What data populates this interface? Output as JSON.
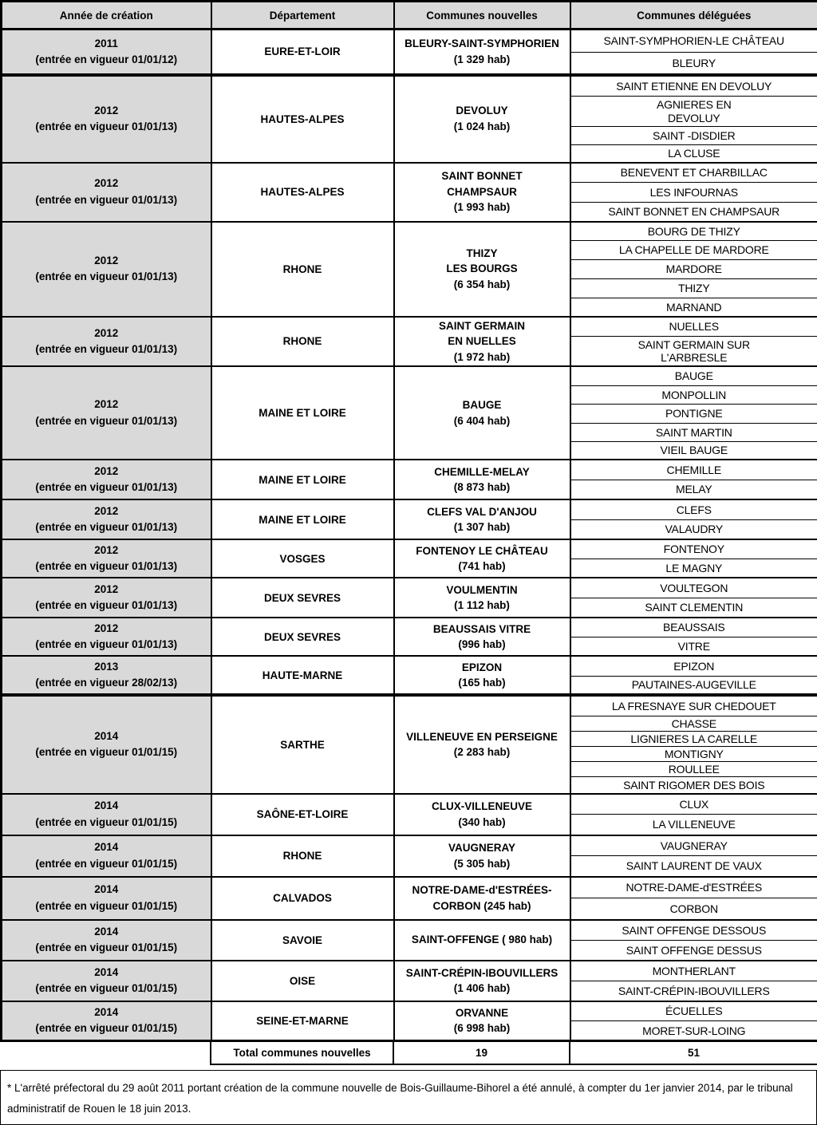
{
  "header": {
    "columns": [
      "Année de création",
      "Département",
      "Communes nouvelles",
      "Communes déléguées"
    ]
  },
  "rows": [
    {
      "year": "2011\n(entrée en vigueur 01/01/12)",
      "departement": "EURE-ET-LOIR",
      "commune_nouvelle": "BLEURY-SAINT-SYMPHORIEN\n(1 329 hab)",
      "communes_deleguees": [
        "SAINT-SYMPHORIEN-LE CHÂTEAU",
        "BLEURY"
      ],
      "group_end": true
    },
    {
      "year": "2012\n(entrée en vigueur 01/01/13)",
      "departement": "HAUTES-ALPES",
      "commune_nouvelle": "DEVOLUY\n(1 024 hab)",
      "communes_deleguees": [
        "SAINT ETIENNE EN DEVOLUY",
        "AGNIERES EN\nDEVOLUY",
        "SAINT -DISDIER",
        "LA CLUSE"
      ]
    },
    {
      "year": "2012\n(entrée en vigueur 01/01/13)",
      "departement": "HAUTES-ALPES",
      "commune_nouvelle": "SAINT BONNET\nCHAMPSAUR\n(1 993 hab)",
      "communes_deleguees": [
        "BENEVENT ET CHARBILLAC",
        "LES INFOURNAS",
        "SAINT BONNET EN CHAMPSAUR"
      ]
    },
    {
      "year": "2012\n(entrée en vigueur 01/01/13)",
      "departement": "RHONE",
      "commune_nouvelle": "THIZY\nLES BOURGS\n(6 354 hab)",
      "communes_deleguees": [
        "BOURG DE THIZY",
        "LA CHAPELLE DE MARDORE",
        "MARDORE",
        "THIZY",
        "MARNAND"
      ]
    },
    {
      "year": "2012\n(entrée en vigueur 01/01/13)",
      "departement": "RHONE",
      "commune_nouvelle": "SAINT GERMAIN\nEN NUELLES\n(1 972 hab)",
      "communes_deleguees": [
        "NUELLES",
        "SAINT GERMAIN SUR\nL'ARBRESLE"
      ]
    },
    {
      "year": "2012\n(entrée en vigueur 01/01/13)",
      "departement": "MAINE ET LOIRE",
      "commune_nouvelle": "BAUGE\n(6 404 hab)",
      "communes_deleguees": [
        "BAUGE",
        "MONPOLLIN",
        "PONTIGNE",
        "SAINT MARTIN",
        "VIEIL BAUGE"
      ]
    },
    {
      "year": "2012\n(entrée en vigueur 01/01/13)",
      "departement": "MAINE ET LOIRE",
      "commune_nouvelle": "CHEMILLE-MELAY\n(8 873 hab)",
      "communes_deleguees": [
        "CHEMILLE",
        "MELAY"
      ]
    },
    {
      "year": "2012\n(entrée en vigueur 01/01/13)",
      "departement": "MAINE ET LOIRE",
      "commune_nouvelle": "CLEFS VAL D'ANJOU\n(1 307 hab)",
      "communes_deleguees": [
        "CLEFS",
        "VALAUDRY"
      ]
    },
    {
      "year": "2012\n(entrée en vigueur 01/01/13)",
      "departement": "VOSGES",
      "commune_nouvelle": "FONTENOY LE CHÂTEAU\n(741 hab)",
      "communes_deleguees": [
        "FONTENOY",
        "LE MAGNY"
      ]
    },
    {
      "year": "2012\n(entrée en vigueur 01/01/13)",
      "departement": "DEUX SEVRES",
      "commune_nouvelle": "VOULMENTIN\n(1 112 hab)",
      "communes_deleguees": [
        "VOULTEGON",
        "SAINT CLEMENTIN"
      ]
    },
    {
      "year": "2012\n(entrée en vigueur 01/01/13)",
      "departement": "DEUX SEVRES",
      "commune_nouvelle": "BEAUSSAIS VITRE\n(996 hab)",
      "communes_deleguees": [
        "BEAUSSAIS",
        "VITRE"
      ]
    },
    {
      "year": "2013\n(entrée en vigueur 28/02/13)",
      "departement": "HAUTE-MARNE",
      "commune_nouvelle": "EPIZON\n(165 hab)",
      "communes_deleguees": [
        "EPIZON",
        "PAUTAINES-AUGEVILLE"
      ],
      "group_end": true
    },
    {
      "year": "2014\n(entrée en vigueur 01/01/15)",
      "departement": "SARTHE",
      "commune_nouvelle": "VILLENEUVE EN PERSEIGNE\n(2 283 hab)",
      "communes_deleguees": [
        "LA FRESNAYE SUR CHEDOUET",
        "CHASSE",
        "LIGNIERES LA CARELLE",
        "MONTIGNY",
        "ROULLEE",
        "SAINT RIGOMER DES BOIS"
      ]
    },
    {
      "year": "2014\n(entrée en vigueur 01/01/15)",
      "departement": "SAÔNE-ET-LOIRE",
      "commune_nouvelle": "CLUX-VILLENEUVE\n(340 hab)",
      "communes_deleguees": [
        "CLUX",
        "LA VILLENEUVE"
      ]
    },
    {
      "year": "2014\n(entrée en vigueur 01/01/15)",
      "departement": "RHONE",
      "commune_nouvelle": "VAUGNERAY\n(5 305 hab)",
      "communes_deleguees": [
        "VAUGNERAY",
        "SAINT LAURENT DE VAUX"
      ]
    },
    {
      "year": "2014\n(entrée en vigueur 01/01/15)",
      "departement": "CALVADOS",
      "commune_nouvelle": "NOTRE-DAME-d'ESTRÉES-\nCORBON (245 hab)",
      "communes_deleguees": [
        "NOTRE-DAME-d'ESTRÉES",
        "CORBON"
      ]
    },
    {
      "year": "2014\n(entrée en vigueur 01/01/15)",
      "departement": "SAVOIE",
      "commune_nouvelle": "SAINT-OFFENGE ( 980 hab)",
      "communes_deleguees": [
        "SAINT OFFENGE DESSOUS",
        "SAINT OFFENGE DESSUS"
      ]
    },
    {
      "year": "2014\n(entrée en vigueur 01/01/15)",
      "departement": "OISE",
      "commune_nouvelle": "SAINT-CRÉPIN-IBOUVILLERS\n(1 406 hab)",
      "communes_deleguees": [
        "MONTHERLANT",
        "SAINT-CRÉPIN-IBOUVILLERS"
      ]
    },
    {
      "year": "2014\n(entrée en vigueur 01/01/15)",
      "departement": "SEINE-ET-MARNE",
      "commune_nouvelle": "ORVANNE\n(6 998 hab)",
      "communes_deleguees": [
        "ÉCUELLES",
        "MORET-SUR-LOING"
      ]
    }
  ],
  "total": {
    "label": "Total communes nouvelles",
    "communes_nouvelles": "19",
    "communes_deleguees": "51"
  },
  "footnote": "* L'arrêté préfectoral du 29 août 2011 portant création de la commune nouvelle de Bois-Guillaume-Bihorel a été annulé, à compter du 1er janvier 2014, par le tribunal administratif de Rouen le 18 juin 2013.",
  "colors": {
    "header_background": "#d9d9d9",
    "year_column_background": "#d9d9d9",
    "border": "#000000",
    "text": "#000000"
  }
}
